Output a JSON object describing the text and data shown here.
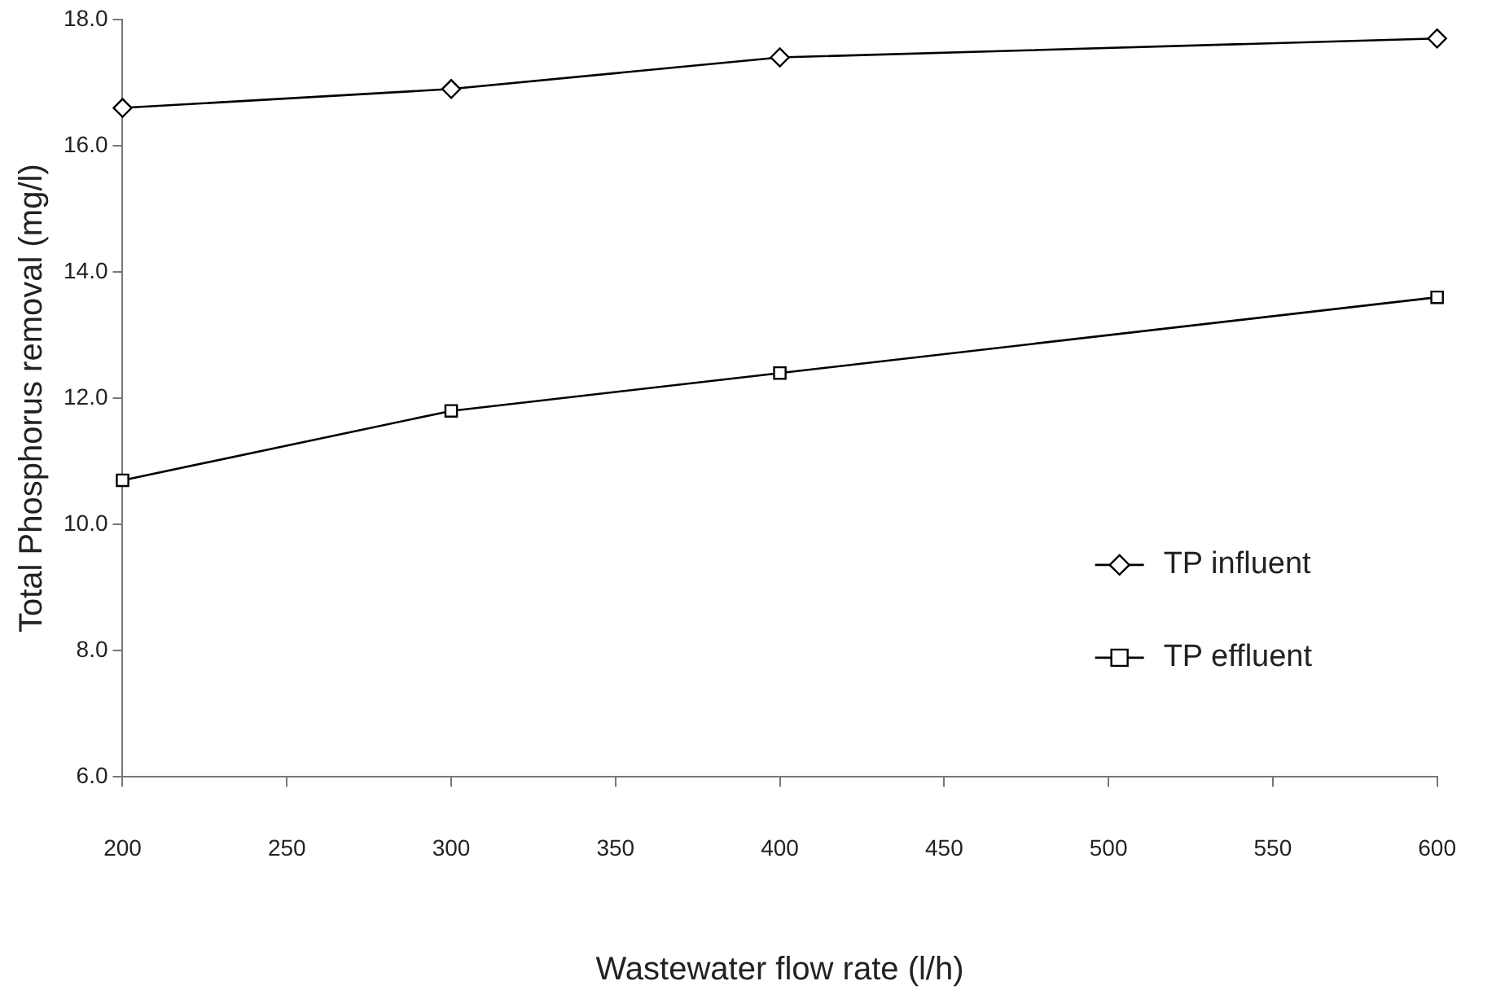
{
  "chart_data": {
    "type": "line",
    "xlabel": "Wastewater flow rate (l/h)",
    "ylabel": "Total Phosphorus removal (mg/l)",
    "x": [
      200,
      300,
      400,
      600
    ],
    "series": [
      {
        "name": "TP influent",
        "color": "#000000",
        "values": [
          16.6,
          16.9,
          17.4,
          17.7
        ],
        "marker": "diamond"
      },
      {
        "name": "TP effluent",
        "color": "#000000",
        "values": [
          10.7,
          11.8,
          12.4,
          13.6
        ],
        "marker": "square"
      }
    ],
    "xlim": [
      200,
      600
    ],
    "xticks": [
      200,
      250,
      300,
      350,
      400,
      450,
      500,
      550,
      600
    ],
    "ylim": [
      6,
      18
    ],
    "yticks": [
      {
        "value": 6,
        "label": "6.0"
      },
      {
        "value": 8,
        "label": "8.0"
      },
      {
        "value": 10,
        "label": "10.0"
      },
      {
        "value": 12,
        "label": "12.0"
      },
      {
        "value": 14,
        "label": "14.0"
      },
      {
        "value": 16,
        "label": "16.0"
      },
      {
        "value": 18,
        "label": "18.0"
      }
    ],
    "grid": false,
    "legend": "right",
    "line_style": "solid"
  }
}
